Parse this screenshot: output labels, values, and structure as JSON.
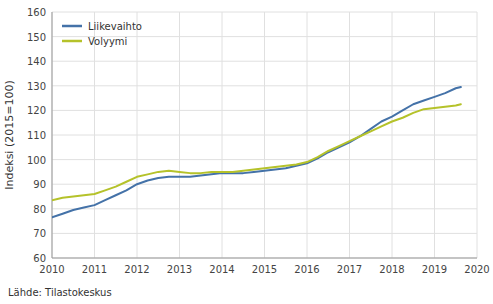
{
  "chart_data": {
    "type": "line",
    "ylabel": "Indeksi (2015=100)",
    "annotations": [
      "Lähde: Tilastokeskus"
    ],
    "x": [
      2010.0,
      2010.25,
      2010.5,
      2010.75,
      2011.0,
      2011.25,
      2011.5,
      2011.75,
      2012.0,
      2012.25,
      2012.5,
      2012.75,
      2013.0,
      2013.25,
      2013.5,
      2013.75,
      2014.0,
      2014.25,
      2014.5,
      2014.75,
      2015.0,
      2015.25,
      2015.5,
      2015.75,
      2016.0,
      2016.25,
      2016.5,
      2016.75,
      2017.0,
      2017.25,
      2017.5,
      2017.75,
      2018.0,
      2018.25,
      2018.5,
      2018.75,
      2019.0,
      2019.25,
      2019.5,
      2019.62
    ],
    "series": [
      {
        "name": "Liikevaihto",
        "color": "#4472a8",
        "values": [
          76.5,
          78.0,
          79.5,
          80.5,
          81.5,
          83.5,
          85.5,
          87.5,
          90.0,
          91.5,
          92.5,
          93.0,
          93.0,
          93.0,
          93.5,
          94.0,
          94.5,
          94.5,
          94.5,
          95.0,
          95.5,
          96.0,
          96.5,
          97.5,
          98.5,
          100.5,
          103.0,
          105.0,
          107.0,
          109.5,
          112.5,
          115.5,
          117.5,
          120.0,
          122.5,
          124.0,
          125.5,
          127.0,
          129.0,
          129.5
        ]
      },
      {
        "name": "Volyymi",
        "color": "#b5c22a",
        "values": [
          83.5,
          84.5,
          85.0,
          85.5,
          86.0,
          87.5,
          89.0,
          91.0,
          93.0,
          94.0,
          95.0,
          95.5,
          95.0,
          94.5,
          94.5,
          95.0,
          95.0,
          95.0,
          95.5,
          96.0,
          96.5,
          97.0,
          97.5,
          98.0,
          99.0,
          101.0,
          103.5,
          105.5,
          107.5,
          109.5,
          111.5,
          113.5,
          115.5,
          117.0,
          119.0,
          120.5,
          121.0,
          121.5,
          122.0,
          122.5
        ]
      }
    ],
    "xlim": [
      2010.0,
      2020.0
    ],
    "ylim": [
      60,
      160
    ],
    "xticks": [
      2010,
      2011,
      2012,
      2013,
      2014,
      2015,
      2016,
      2017,
      2018,
      2019,
      2020
    ],
    "yticks": [
      60,
      70,
      80,
      90,
      100,
      110,
      120,
      130,
      140,
      150,
      160
    ],
    "grid": true,
    "legend": "upper left"
  }
}
